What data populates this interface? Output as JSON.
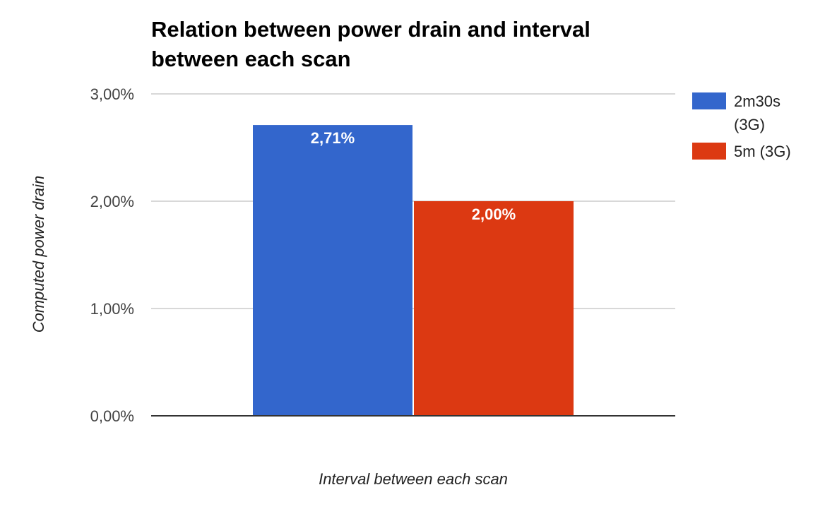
{
  "chart_data": {
    "type": "bar",
    "title": "Relation between power drain and interval between each scan",
    "title_lines": [
      "Relation between power drain and interval",
      "between each scan"
    ],
    "xlabel": "Interval between each scan",
    "ylabel": "Computed power drain",
    "categories": [
      ""
    ],
    "ylim": [
      0,
      0.03
    ],
    "yticks": [
      {
        "value": 0.0,
        "label": "0,00%"
      },
      {
        "value": 0.01,
        "label": "1,00%"
      },
      {
        "value": 0.02,
        "label": "2,00%"
      },
      {
        "value": 0.03,
        "label": "3,00%"
      }
    ],
    "grid": true,
    "legend_position": "right",
    "series": [
      {
        "name": "2m30s (3G)",
        "legend_lines": [
          "2m30s",
          "(3G)"
        ],
        "values": [
          0.0271
        ],
        "data_labels": [
          "2,71%"
        ],
        "color": "#3366cc"
      },
      {
        "name": "5m (3G)",
        "legend_lines": [
          "5m (3G)"
        ],
        "values": [
          0.02
        ],
        "data_labels": [
          "2,00%"
        ],
        "color": "#dc3912"
      }
    ]
  }
}
